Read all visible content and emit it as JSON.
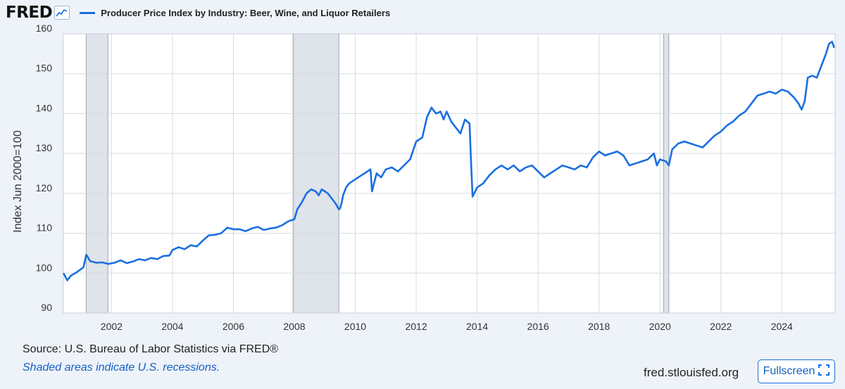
{
  "header": {
    "logo_text": "FRED",
    "logo_icon": "fred-graph-icon"
  },
  "chart_data": {
    "type": "line",
    "title": "Producer Price Index by Industry: Beer, Wine, and Liquor Retailers",
    "ylabel": "Index Jun 2000=100",
    "xlabel": "",
    "ylim": [
      90,
      160
    ],
    "xlim": [
      2000.42,
      2025.75
    ],
    "y_ticks": [
      90,
      100,
      110,
      120,
      130,
      140,
      150,
      160
    ],
    "x_ticks": [
      "2002",
      "2004",
      "2006",
      "2008",
      "2010",
      "2012",
      "2014",
      "2016",
      "2018",
      "2020",
      "2022",
      "2024"
    ],
    "x_tick_values": [
      2002,
      2004,
      2006,
      2008,
      2010,
      2012,
      2014,
      2016,
      2018,
      2020,
      2022,
      2024
    ],
    "grid": true,
    "legend_position": "top-left",
    "series_color": "#1a6fe0",
    "recession_color": "#dfe3ea",
    "recessions": [
      [
        2001.17,
        2001.88
      ],
      [
        2007.96,
        2009.46
      ],
      [
        2020.12,
        2020.29
      ]
    ],
    "series": [
      {
        "name": "Producer Price Index by Industry: Beer, Wine, and Liquor Retailers",
        "points": [
          [
            2000.42,
            100.0
          ],
          [
            2000.55,
            98.2
          ],
          [
            2000.67,
            99.4
          ],
          [
            2000.85,
            100.2
          ],
          [
            2001.0,
            101.0
          ],
          [
            2001.08,
            101.5
          ],
          [
            2001.17,
            104.6
          ],
          [
            2001.3,
            103.0
          ],
          [
            2001.5,
            102.6
          ],
          [
            2001.7,
            102.7
          ],
          [
            2001.9,
            102.3
          ],
          [
            2002.1,
            102.6
          ],
          [
            2002.3,
            103.2
          ],
          [
            2002.5,
            102.5
          ],
          [
            2002.7,
            102.9
          ],
          [
            2002.9,
            103.5
          ],
          [
            2003.1,
            103.2
          ],
          [
            2003.3,
            103.8
          ],
          [
            2003.5,
            103.5
          ],
          [
            2003.7,
            104.3
          ],
          [
            2003.9,
            104.4
          ],
          [
            2004.0,
            105.8
          ],
          [
            2004.2,
            106.5
          ],
          [
            2004.4,
            106.0
          ],
          [
            2004.6,
            107.0
          ],
          [
            2004.8,
            106.7
          ],
          [
            2005.0,
            108.2
          ],
          [
            2005.2,
            109.5
          ],
          [
            2005.4,
            109.6
          ],
          [
            2005.6,
            110.0
          ],
          [
            2005.8,
            111.4
          ],
          [
            2006.0,
            111.0
          ],
          [
            2006.2,
            111.0
          ],
          [
            2006.4,
            110.5
          ],
          [
            2006.6,
            111.2
          ],
          [
            2006.8,
            111.6
          ],
          [
            2007.0,
            110.8
          ],
          [
            2007.2,
            111.2
          ],
          [
            2007.4,
            111.4
          ],
          [
            2007.6,
            112.0
          ],
          [
            2007.8,
            113.0
          ],
          [
            2008.0,
            113.5
          ],
          [
            2008.1,
            116.0
          ],
          [
            2008.25,
            117.8
          ],
          [
            2008.4,
            120.0
          ],
          [
            2008.55,
            121.0
          ],
          [
            2008.7,
            120.5
          ],
          [
            2008.8,
            119.5
          ],
          [
            2008.9,
            121.0
          ],
          [
            2009.0,
            120.5
          ],
          [
            2009.1,
            120.0
          ],
          [
            2009.2,
            119.0
          ],
          [
            2009.35,
            117.5
          ],
          [
            2009.46,
            116.0
          ],
          [
            2009.5,
            116.2
          ],
          [
            2009.55,
            117.5
          ],
          [
            2009.6,
            119.5
          ],
          [
            2009.7,
            121.5
          ],
          [
            2009.8,
            122.5
          ],
          [
            2009.9,
            123.0
          ],
          [
            2010.1,
            124.0
          ],
          [
            2010.3,
            125.0
          ],
          [
            2010.5,
            126.0
          ],
          [
            2010.55,
            120.5
          ],
          [
            2010.7,
            125.0
          ],
          [
            2010.85,
            124.0
          ],
          [
            2011.0,
            126.0
          ],
          [
            2011.2,
            126.5
          ],
          [
            2011.4,
            125.5
          ],
          [
            2011.6,
            127.0
          ],
          [
            2011.8,
            128.5
          ],
          [
            2012.0,
            133.0
          ],
          [
            2012.2,
            134.0
          ],
          [
            2012.35,
            139.0
          ],
          [
            2012.5,
            141.5
          ],
          [
            2012.65,
            140.0
          ],
          [
            2012.8,
            140.5
          ],
          [
            2012.9,
            138.5
          ],
          [
            2013.0,
            140.5
          ],
          [
            2013.15,
            138.0
          ],
          [
            2013.3,
            136.5
          ],
          [
            2013.45,
            135.0
          ],
          [
            2013.6,
            138.5
          ],
          [
            2013.75,
            137.5
          ],
          [
            2013.8,
            128.0
          ],
          [
            2013.85,
            119.2
          ],
          [
            2014.0,
            121.5
          ],
          [
            2014.2,
            122.5
          ],
          [
            2014.4,
            124.5
          ],
          [
            2014.6,
            126.0
          ],
          [
            2014.8,
            127.0
          ],
          [
            2015.0,
            126.0
          ],
          [
            2015.2,
            127.0
          ],
          [
            2015.4,
            125.5
          ],
          [
            2015.6,
            126.5
          ],
          [
            2015.8,
            127.0
          ],
          [
            2016.0,
            125.5
          ],
          [
            2016.2,
            124.0
          ],
          [
            2016.4,
            125.0
          ],
          [
            2016.6,
            126.0
          ],
          [
            2016.8,
            127.0
          ],
          [
            2017.0,
            126.5
          ],
          [
            2017.2,
            126.0
          ],
          [
            2017.4,
            127.0
          ],
          [
            2017.6,
            126.5
          ],
          [
            2017.8,
            129.0
          ],
          [
            2018.0,
            130.5
          ],
          [
            2018.2,
            129.5
          ],
          [
            2018.4,
            130.0
          ],
          [
            2018.6,
            130.5
          ],
          [
            2018.8,
            129.5
          ],
          [
            2019.0,
            127.0
          ],
          [
            2019.2,
            127.5
          ],
          [
            2019.4,
            128.0
          ],
          [
            2019.6,
            128.5
          ],
          [
            2019.8,
            130.0
          ],
          [
            2019.9,
            127.0
          ],
          [
            2020.0,
            128.5
          ],
          [
            2020.2,
            128.0
          ],
          [
            2020.29,
            127.0
          ],
          [
            2020.4,
            131.0
          ],
          [
            2020.6,
            132.5
          ],
          [
            2020.8,
            133.0
          ],
          [
            2021.0,
            132.5
          ],
          [
            2021.2,
            132.0
          ],
          [
            2021.4,
            131.5
          ],
          [
            2021.6,
            133.0
          ],
          [
            2021.8,
            134.5
          ],
          [
            2022.0,
            135.5
          ],
          [
            2022.2,
            137.0
          ],
          [
            2022.4,
            138.0
          ],
          [
            2022.6,
            139.5
          ],
          [
            2022.8,
            140.5
          ],
          [
            2023.0,
            142.5
          ],
          [
            2023.2,
            144.5
          ],
          [
            2023.4,
            145.0
          ],
          [
            2023.6,
            145.5
          ],
          [
            2023.8,
            145.0
          ],
          [
            2024.0,
            146.0
          ],
          [
            2024.2,
            145.5
          ],
          [
            2024.4,
            144.0
          ],
          [
            2024.55,
            142.5
          ],
          [
            2024.65,
            141.0
          ],
          [
            2024.75,
            143.0
          ],
          [
            2024.85,
            149.0
          ],
          [
            2025.0,
            149.5
          ],
          [
            2025.15,
            149.0
          ],
          [
            2025.3,
            152.0
          ],
          [
            2025.45,
            155.0
          ],
          [
            2025.55,
            157.5
          ],
          [
            2025.65,
            158.0
          ],
          [
            2025.72,
            156.5
          ]
        ]
      }
    ]
  },
  "footer": {
    "source": "Source: U.S. Bureau of Labor Statistics via FRED®",
    "recession_note": "Shaded areas indicate U.S. recessions.",
    "site": "fred.stlouisfed.org",
    "fullscreen_label": "Fullscreen",
    "fullscreen_icon": "expand-icon"
  }
}
